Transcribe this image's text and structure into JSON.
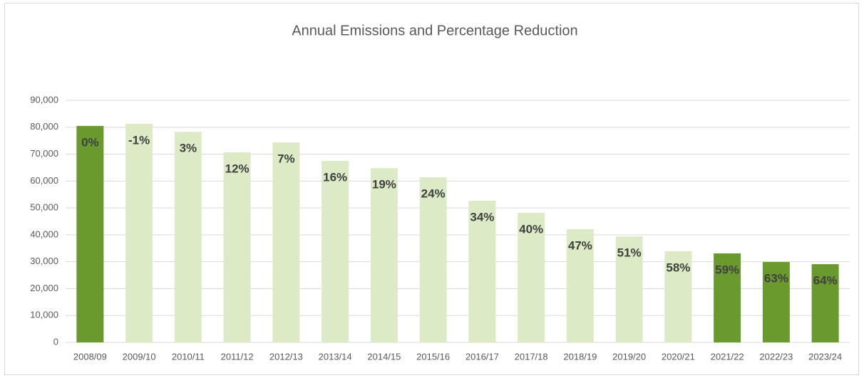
{
  "chart_data": {
    "type": "bar",
    "title": "Annual Emissions and Percentage Reduction",
    "categories": [
      "2008/09",
      "2009/10",
      "2010/11",
      "2011/12",
      "2012/13",
      "2013/14",
      "2014/15",
      "2015/16",
      "2016/17",
      "2017/18",
      "2018/19",
      "2019/20",
      "2020/21",
      "2021/22",
      "2022/23",
      "2023/24"
    ],
    "values": [
      80500,
      81300,
      78300,
      70700,
      74400,
      67500,
      64800,
      61400,
      52700,
      48200,
      42100,
      39400,
      33900,
      33100,
      29900,
      29100
    ],
    "percentage_labels": [
      "0%",
      "-1%",
      "3%",
      "12%",
      "7%",
      "16%",
      "19%",
      "24%",
      "34%",
      "40%",
      "47%",
      "51%",
      "58%",
      "59%",
      "63%",
      "64%"
    ],
    "colors": [
      "#6a992e",
      "#dcebc6",
      "#dcebc6",
      "#dcebc6",
      "#dcebc6",
      "#dcebc6",
      "#dcebc6",
      "#dcebc6",
      "#dcebc6",
      "#dcebc6",
      "#dcebc6",
      "#dcebc6",
      "#dcebc6",
      "#6a992e",
      "#6a992e",
      "#6a992e"
    ],
    "ylim": [
      0,
      90000
    ],
    "yticks": [
      0,
      {
        "value": 10000,
        "label": "10,000"
      },
      {
        "value": 20000,
        "label": "20,000"
      },
      {
        "value": 30000,
        "label": "30,000"
      },
      {
        "value": 40000,
        "label": "40,000"
      },
      {
        "value": 50000,
        "label": "50,000"
      },
      {
        "value": 60000,
        "label": "60,000"
      },
      {
        "value": 70000,
        "label": "70,000"
      },
      {
        "value": 80000,
        "label": "80,000"
      },
      {
        "value": 90000,
        "label": "90,000"
      }
    ],
    "grid": true
  }
}
